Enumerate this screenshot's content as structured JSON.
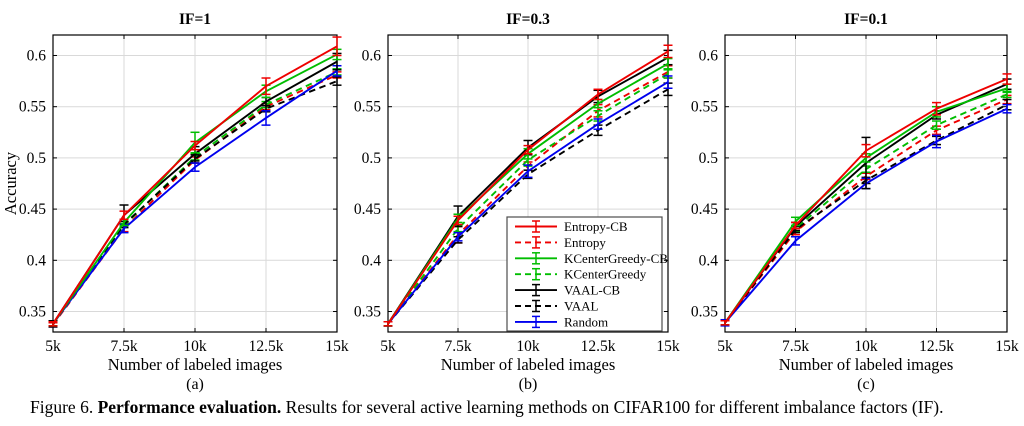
{
  "figure": {
    "caption": {
      "prefix": "Figure 6.",
      "bold": "Performance evaluation.",
      "rest": "Results for several active learning methods on CIFAR100 for different imbalance factors (IF)."
    },
    "shared_ylabel": "Accuracy",
    "shared_xlabel": "Number of labeled images",
    "grid_color": "#d9d9d9",
    "axis_color": "#000000",
    "legend_border_color": "#4d4d4d",
    "series_colors": {
      "red": "#ee0000",
      "green": "#00bd00",
      "black": "#000000",
      "blue": "#0000ee"
    }
  },
  "chart_data": [
    {
      "type": "line",
      "title": "IF=1",
      "sublabel": "(a)",
      "xlabel": "Number of labeled images",
      "ylabel": "Accuracy",
      "x": [
        5000,
        7500,
        10000,
        12500,
        15000
      ],
      "x_tick_labels": [
        "5k",
        "7.5k",
        "10k",
        "12.5k",
        "15k"
      ],
      "ylim": [
        0.33,
        0.62
      ],
      "yticks": [
        0.35,
        0.4,
        0.45,
        0.5,
        0.55,
        0.6
      ],
      "ytick_labels": [
        "0.35",
        "0.4",
        "0.45",
        "0.5",
        "0.55",
        "0.6"
      ],
      "grid": true,
      "series": [
        {
          "name": "Entropy-CB",
          "color": "red",
          "dash": false,
          "values": [
            0.338,
            0.444,
            0.512,
            0.57,
            0.609
          ],
          "err": [
            0.002,
            0.004,
            0.004,
            0.008,
            0.009
          ]
        },
        {
          "name": "Entropy",
          "color": "red",
          "dash": true,
          "values": [
            0.337,
            0.431,
            0.498,
            0.55,
            0.581
          ],
          "err": [
            0.002,
            0.003,
            0.003,
            0.003,
            0.003
          ]
        },
        {
          "name": "KCenterGreedy-CB",
          "color": "green",
          "dash": false,
          "values": [
            0.338,
            0.437,
            0.515,
            0.565,
            0.601
          ],
          "err": [
            0.002,
            0.003,
            0.01,
            0.006,
            0.005
          ]
        },
        {
          "name": "KCenterGreedy",
          "color": "green",
          "dash": true,
          "values": [
            0.338,
            0.434,
            0.501,
            0.552,
            0.584
          ],
          "err": [
            0.002,
            0.002,
            0.003,
            0.003,
            0.003
          ]
        },
        {
          "name": "VAAL-CB",
          "color": "black",
          "dash": false,
          "values": [
            0.338,
            0.444,
            0.504,
            0.555,
            0.594
          ],
          "err": [
            0.003,
            0.01,
            0.007,
            0.004,
            0.008
          ]
        },
        {
          "name": "VAAL",
          "color": "black",
          "dash": true,
          "values": [
            0.338,
            0.435,
            0.499,
            0.548,
            0.575
          ],
          "err": [
            0.002,
            0.003,
            0.004,
            0.003,
            0.004
          ]
        },
        {
          "name": "Random",
          "color": "blue",
          "dash": false,
          "values": [
            0.338,
            0.431,
            0.491,
            0.539,
            0.585
          ],
          "err": [
            0.003,
            0.004,
            0.004,
            0.007,
            0.005
          ]
        }
      ]
    },
    {
      "type": "line",
      "title": "IF=0.3",
      "sublabel": "(b)",
      "xlabel": "Number of labeled images",
      "x": [
        5000,
        7500,
        10000,
        12500,
        15000
      ],
      "x_tick_labels": [
        "5k",
        "7.5k",
        "10k",
        "12.5k",
        "15k"
      ],
      "ylim": [
        0.33,
        0.62
      ],
      "yticks": [
        0.35,
        0.4,
        0.45,
        0.5,
        0.55,
        0.6
      ],
      "ytick_labels": [
        "0.35",
        "0.4",
        "0.45",
        "0.5",
        "0.55",
        "0.6"
      ],
      "grid": true,
      "legend_here": true,
      "series": [
        {
          "name": "Entropy-CB",
          "color": "red",
          "dash": false,
          "values": [
            0.338,
            0.439,
            0.508,
            0.562,
            0.604
          ],
          "err": [
            0.002,
            0.004,
            0.004,
            0.005,
            0.006
          ]
        },
        {
          "name": "Entropy",
          "color": "red",
          "dash": true,
          "values": [
            0.338,
            0.425,
            0.492,
            0.546,
            0.584
          ],
          "err": [
            0.002,
            0.008,
            0.004,
            0.006,
            0.006
          ]
        },
        {
          "name": "KCenterGreedy-CB",
          "color": "green",
          "dash": false,
          "values": [
            0.338,
            0.441,
            0.504,
            0.553,
            0.592
          ],
          "err": [
            0.002,
            0.004,
            0.005,
            0.004,
            0.005
          ]
        },
        {
          "name": "KCenterGreedy",
          "color": "green",
          "dash": true,
          "values": [
            0.338,
            0.431,
            0.498,
            0.541,
            0.582
          ],
          "err": [
            0.002,
            0.003,
            0.006,
            0.005,
            0.004
          ]
        },
        {
          "name": "VAAL-CB",
          "color": "black",
          "dash": false,
          "values": [
            0.338,
            0.443,
            0.51,
            0.56,
            0.598
          ],
          "err": [
            0.002,
            0.01,
            0.007,
            0.006,
            0.007
          ]
        },
        {
          "name": "VAAL",
          "color": "black",
          "dash": true,
          "values": [
            0.338,
            0.42,
            0.484,
            0.527,
            0.567
          ],
          "err": [
            0.002,
            0.003,
            0.004,
            0.005,
            0.006
          ]
        },
        {
          "name": "Random",
          "color": "blue",
          "dash": false,
          "values": [
            0.338,
            0.423,
            0.487,
            0.533,
            0.574
          ],
          "err": [
            0.002,
            0.004,
            0.006,
            0.005,
            0.006
          ]
        }
      ]
    },
    {
      "type": "line",
      "title": "IF=0.1",
      "sublabel": "(c)",
      "xlabel": "Number of labeled images",
      "x": [
        5000,
        7500,
        10000,
        12500,
        15000
      ],
      "x_tick_labels": [
        "5k",
        "7.5k",
        "10k",
        "12.5k",
        "15k"
      ],
      "ylim": [
        0.33,
        0.62
      ],
      "yticks": [
        0.35,
        0.4,
        0.45,
        0.5,
        0.55,
        0.6
      ],
      "ytick_labels": [
        "0.35",
        "0.4",
        "0.45",
        "0.5",
        "0.55",
        "0.6"
      ],
      "grid": true,
      "series": [
        {
          "name": "Entropy-CB",
          "color": "red",
          "dash": false,
          "values": [
            0.339,
            0.434,
            0.507,
            0.548,
            0.577
          ],
          "err": [
            0.002,
            0.003,
            0.006,
            0.006,
            0.005
          ]
        },
        {
          "name": "Entropy",
          "color": "red",
          "dash": true,
          "values": [
            0.339,
            0.428,
            0.482,
            0.527,
            0.557
          ],
          "err": [
            0.002,
            0.003,
            0.003,
            0.004,
            0.004
          ]
        },
        {
          "name": "KCenterGreedy-CB",
          "color": "green",
          "dash": false,
          "values": [
            0.339,
            0.438,
            0.5,
            0.545,
            0.568
          ],
          "err": [
            0.002,
            0.004,
            0.004,
            0.005,
            0.004
          ]
        },
        {
          "name": "KCenterGreedy",
          "color": "green",
          "dash": true,
          "values": [
            0.339,
            0.431,
            0.489,
            0.532,
            0.562
          ],
          "err": [
            0.002,
            0.003,
            0.003,
            0.004,
            0.003
          ]
        },
        {
          "name": "VAAL-CB",
          "color": "black",
          "dash": false,
          "values": [
            0.339,
            0.433,
            0.495,
            0.542,
            0.572
          ],
          "err": [
            0.002,
            0.004,
            0.025,
            0.004,
            0.005
          ]
        },
        {
          "name": "VAAL",
          "color": "black",
          "dash": true,
          "values": [
            0.339,
            0.43,
            0.478,
            0.517,
            0.552
          ],
          "err": [
            0.002,
            0.003,
            0.003,
            0.004,
            0.005
          ]
        },
        {
          "name": "Random",
          "color": "blue",
          "dash": false,
          "values": [
            0.339,
            0.419,
            0.475,
            0.516,
            0.548
          ],
          "err": [
            0.003,
            0.004,
            0.005,
            0.006,
            0.004
          ]
        }
      ]
    }
  ],
  "legend": {
    "entries": [
      "Entropy-CB",
      "Entropy",
      "KCenterGreedy-CB",
      "KCenterGreedy",
      "VAAL-CB",
      "VAAL",
      "Random"
    ],
    "position": "inside panel (b), lower right"
  }
}
